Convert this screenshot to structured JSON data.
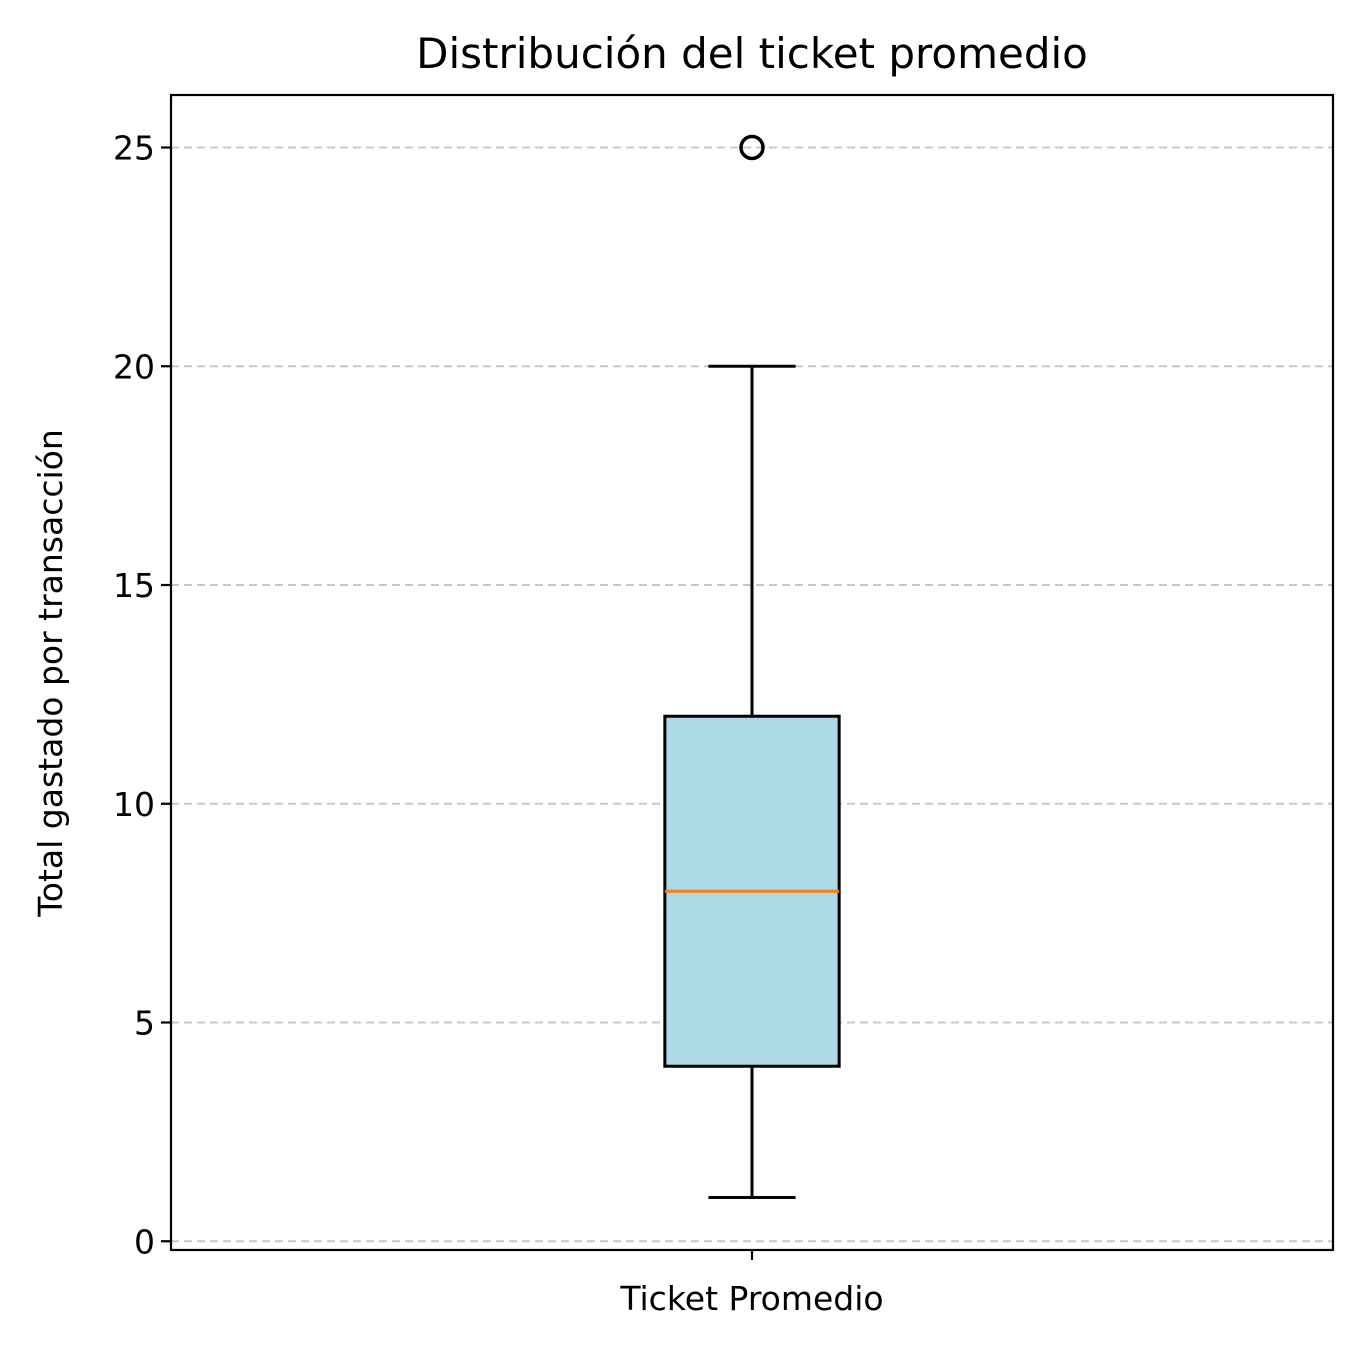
{
  "chart_data": {
    "type": "box",
    "title": "Distribución del ticket promedio",
    "xlabel": "",
    "ylabel": "Total gastado por transacción",
    "categories": [
      "Ticket Promedio"
    ],
    "ylim": [
      -0.2,
      26.2
    ],
    "yticks": [
      0,
      5,
      10,
      15,
      20,
      25
    ],
    "ytick_labels": [
      "0",
      "5",
      "10",
      "15",
      "20",
      "25"
    ],
    "grid": {
      "axis": "y",
      "style": "dashed"
    },
    "boxes": [
      {
        "name": "Ticket Promedio",
        "whisker_low": 1,
        "q1": 4,
        "median": 8,
        "q3": 12,
        "whisker_high": 20,
        "outliers": [
          25
        ]
      }
    ],
    "colors": {
      "box_fill": "#add8e6",
      "box_edge": "#000000",
      "median": "#ff7f0e",
      "grid": "#c8c8c8",
      "outlier_edge": "#000000"
    }
  }
}
